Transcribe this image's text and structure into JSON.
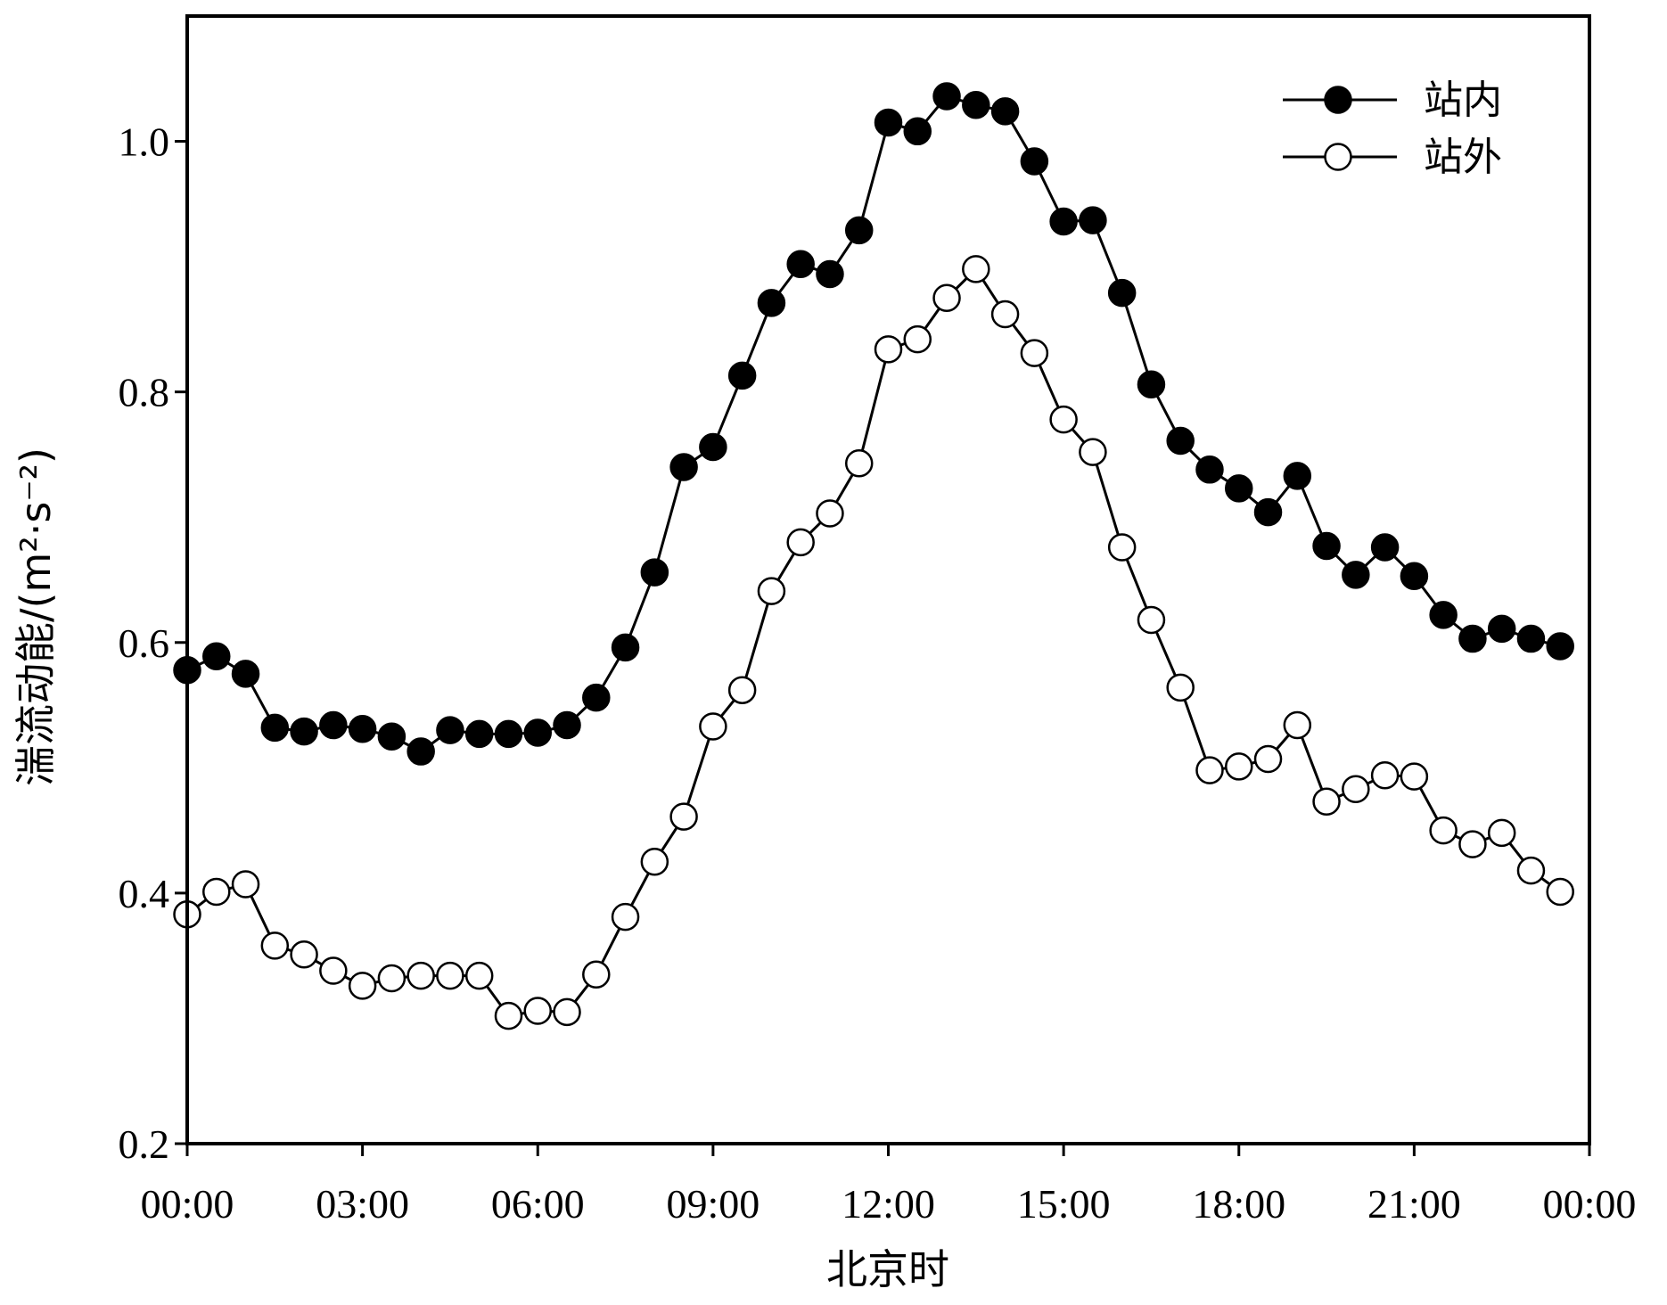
{
  "chart_data": {
    "type": "line",
    "title": "",
    "xlabel": "北京时",
    "ylabel": "湍流动能/(m²·s⁻²)",
    "x": [
      "00:00",
      "00:30",
      "01:00",
      "01:30",
      "02:00",
      "02:30",
      "03:00",
      "03:30",
      "04:00",
      "04:30",
      "05:00",
      "05:30",
      "06:00",
      "06:30",
      "07:00",
      "07:30",
      "08:00",
      "08:30",
      "09:00",
      "09:30",
      "10:00",
      "10:30",
      "11:00",
      "11:30",
      "12:00",
      "12:30",
      "13:00",
      "13:30",
      "14:00",
      "14:30",
      "15:00",
      "15:30",
      "16:00",
      "16:30",
      "17:00",
      "17:30",
      "18:00",
      "18:30",
      "19:00",
      "19:30",
      "20:00",
      "20:30",
      "21:00",
      "21:30",
      "22:00",
      "22:30",
      "23:00",
      "23:30"
    ],
    "xticks": [
      "00:00",
      "03:00",
      "06:00",
      "09:00",
      "12:00",
      "15:00",
      "18:00",
      "21:00",
      "00:00"
    ],
    "ylim": [
      0.2,
      1.1
    ],
    "yticks": [
      0.2,
      0.4,
      0.6,
      0.8,
      1.0
    ],
    "ytick_labels": [
      "0.2",
      "0.4",
      "0.6",
      "0.8",
      "1.0"
    ],
    "grid": false,
    "legend_position": "top-right",
    "colors": {
      "line": "#000000",
      "open_marker_fill": "#ffffff",
      "filled_marker": "#000000"
    },
    "series": [
      {
        "name": "站内",
        "marker": "filled-circle",
        "values": [
          0.578,
          0.589,
          0.575,
          0.532,
          0.529,
          0.534,
          0.531,
          0.525,
          0.513,
          0.53,
          0.527,
          0.527,
          0.528,
          0.534,
          0.556,
          0.596,
          0.656,
          0.74,
          0.756,
          0.813,
          0.871,
          0.902,
          0.894,
          0.929,
          1.015,
          1.008,
          1.036,
          1.029,
          1.024,
          0.984,
          0.936,
          0.937,
          0.879,
          0.806,
          0.761,
          0.738,
          0.723,
          0.704,
          0.733,
          0.677,
          0.654,
          0.676,
          0.653,
          0.622,
          0.603,
          0.611,
          0.603,
          0.597
        ]
      },
      {
        "name": "站外",
        "marker": "open-circle",
        "values": [
          0.383,
          0.401,
          0.407,
          0.358,
          0.351,
          0.338,
          0.326,
          0.332,
          0.334,
          0.334,
          0.334,
          0.302,
          0.306,
          0.305,
          0.335,
          0.381,
          0.425,
          0.461,
          0.533,
          0.562,
          0.641,
          0.68,
          0.703,
          0.743,
          0.834,
          0.842,
          0.875,
          0.898,
          0.862,
          0.831,
          0.778,
          0.752,
          0.676,
          0.618,
          0.564,
          0.498,
          0.501,
          0.507,
          0.534,
          0.473,
          0.483,
          0.494,
          0.493,
          0.45,
          0.439,
          0.448,
          0.418,
          0.401
        ]
      }
    ]
  }
}
